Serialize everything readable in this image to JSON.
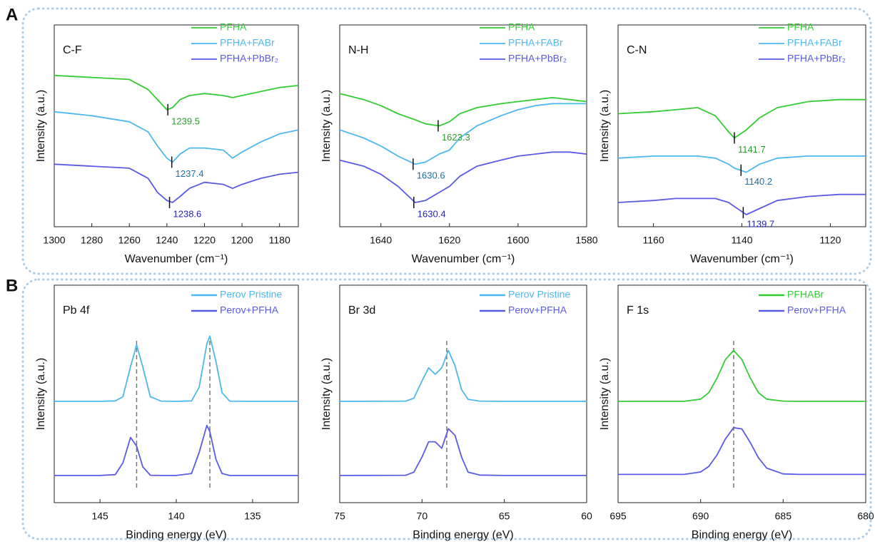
{
  "panels": [
    "A",
    "B"
  ],
  "chart_data": [
    {
      "type": "line",
      "title": "C-F",
      "xlabel": "Wavenumber (cm⁻¹)",
      "ylabel": "Intensity (a.u.)",
      "xlim": [
        1300,
        1170
      ],
      "xticks": [
        1300,
        1280,
        1260,
        1240,
        1220,
        1200,
        1180
      ],
      "ylim": [
        0,
        100
      ],
      "grid": false,
      "legend": "upper right",
      "x": [
        1300,
        1280,
        1260,
        1250,
        1245,
        1240,
        1237,
        1233,
        1228,
        1220,
        1210,
        1205,
        1200,
        1190,
        1180,
        1170
      ],
      "series": [
        {
          "name": "PFHA",
          "color": "#33cc33",
          "values": [
            75,
            74,
            73,
            68,
            63,
            58,
            59,
            63,
            65,
            66,
            65,
            64,
            65,
            67,
            69,
            70
          ]
        },
        {
          "name": "PFHA+FABr",
          "color": "#4db8f0",
          "values": [
            57,
            55,
            52,
            47,
            40,
            34,
            32,
            36,
            39,
            39,
            38,
            34,
            37,
            42,
            46,
            48
          ]
        },
        {
          "name": "PFHA+PbBr₂",
          "color": "#5a5ae6",
          "values": [
            31,
            30,
            29,
            24,
            17,
            13,
            12,
            15,
            19,
            22,
            21,
            19,
            21,
            24,
            26,
            27
          ]
        }
      ],
      "annotations": [
        {
          "x": 1239.5,
          "y": 58,
          "color": "#2a9d2a"
        },
        {
          "x": 1237.4,
          "y": 32,
          "color": "#1c6ea4"
        },
        {
          "x": 1238.6,
          "y": 12,
          "color": "#2626b0"
        }
      ]
    },
    {
      "type": "line",
      "title": "N-H",
      "xlabel": "Wavenumber (cm⁻¹)",
      "ylabel": "Intensity (a.u.)",
      "xlim": [
        1652,
        1580
      ],
      "xticks": [
        1640,
        1620,
        1600,
        1580
      ],
      "ylim": [
        0,
        100
      ],
      "grid": false,
      "legend": "upper right",
      "x": [
        1652,
        1645,
        1640,
        1635,
        1630,
        1627,
        1623,
        1620,
        1617,
        1612,
        1605,
        1600,
        1595,
        1590,
        1585,
        1580
      ],
      "series": [
        {
          "name": "PFHA",
          "color": "#33cc33",
          "values": [
            66,
            63,
            60,
            56,
            53,
            51,
            50,
            52,
            56,
            59,
            61,
            62,
            63,
            64,
            63,
            62
          ]
        },
        {
          "name": "PFHA+FABr",
          "color": "#4db8f0",
          "values": [
            48,
            44,
            40,
            35,
            31,
            32,
            36,
            38,
            44,
            50,
            55,
            58,
            60,
            61,
            61,
            61
          ]
        },
        {
          "name": "PFHA+PbBr₂",
          "color": "#5a5ae6",
          "values": [
            33,
            30,
            26,
            20,
            12,
            13,
            17,
            20,
            25,
            30,
            33,
            35,
            36,
            37,
            37,
            36
          ]
        }
      ],
      "annotations": [
        {
          "x": 1623.3,
          "y": 50,
          "color": "#2a9d2a"
        },
        {
          "x": 1630.6,
          "y": 31,
          "color": "#1c6ea4"
        },
        {
          "x": 1630.4,
          "y": 12,
          "color": "#2626b0"
        }
      ]
    },
    {
      "type": "line",
      "title": "C-N",
      "xlabel": "Wavenumber (cm⁻¹)",
      "ylabel": "Intensity (a.u.)",
      "xlim": [
        1168,
        1112
      ],
      "xticks": [
        1160,
        1140,
        1120
      ],
      "ylim": [
        0,
        100
      ],
      "grid": false,
      "legend": "upper right",
      "x": [
        1168,
        1160,
        1155,
        1150,
        1146,
        1143,
        1141.7,
        1139,
        1136,
        1132,
        1125,
        1118,
        1112
      ],
      "series": [
        {
          "name": "PFHA",
          "color": "#33cc33",
          "values": [
            56,
            57,
            58,
            59,
            55,
            47,
            44,
            48,
            54,
            59,
            62,
            63,
            63
          ]
        },
        {
          "name": "PFHA+FABr",
          "color": "#4db8f0",
          "values": [
            34,
            35,
            35,
            35,
            34,
            31,
            29,
            27,
            31,
            34,
            35,
            35,
            35
          ]
        },
        {
          "name": "PFHA+PbBr₂",
          "color": "#5a5ae6",
          "values": [
            12,
            13,
            14,
            14,
            14,
            12,
            10,
            6,
            9,
            13,
            15,
            16,
            16
          ]
        }
      ],
      "annotations": [
        {
          "x": 1141.7,
          "y": 44,
          "color": "#2a9d2a"
        },
        {
          "x": 1140.2,
          "y": 28,
          "color": "#1c6ea4"
        },
        {
          "x": 1139.7,
          "y": 7,
          "color": "#2626b0"
        }
      ]
    },
    {
      "type": "line",
      "title": "Pb 4f",
      "xlabel": "Binding energy (eV)",
      "ylabel": "Intensity (a.u.)",
      "xlim": [
        148,
        132
      ],
      "xticks": [
        145,
        140,
        135
      ],
      "ylim": [
        0,
        100
      ],
      "grid": false,
      "legend": "upper right",
      "x": [
        148,
        145,
        144,
        143.5,
        143,
        142.6,
        142.2,
        141.7,
        141,
        140,
        139,
        138.5,
        138,
        137.8,
        137.4,
        137,
        136.5,
        135,
        132
      ],
      "series": [
        {
          "name": "Perov Pristine",
          "color": "#4db8f0",
          "values": [
            46.6,
            46.6,
            46.8,
            48.7,
            62.5,
            72.6,
            62.5,
            48.7,
            46.7,
            46.6,
            46.8,
            53.1,
            73,
            76.6,
            64.9,
            50.6,
            46.7,
            46.6,
            46.6
          ]
        },
        {
          "name": "Perov+PFHA",
          "color": "#5a5ae6",
          "values": [
            12.5,
            12.5,
            12.9,
            18.3,
            30,
            26,
            16.5,
            12.6,
            12.5,
            12.5,
            13.4,
            23.1,
            35.5,
            32.7,
            19.9,
            13.4,
            12.5,
            12.5,
            12.5
          ]
        }
      ],
      "vlines": [
        142.6,
        137.8
      ]
    },
    {
      "type": "line",
      "title": "Br 3d",
      "xlabel": "Binding energy (eV)",
      "ylabel": "Intensity (a.u.)",
      "xlim": [
        75,
        60
      ],
      "xticks": [
        75,
        70,
        65,
        60
      ],
      "ylim": [
        0,
        100
      ],
      "grid": false,
      "legend": "upper right",
      "x": [
        75,
        71,
        70.5,
        70,
        69.6,
        69.2,
        68.8,
        68.4,
        68,
        67.6,
        67.2,
        66.5,
        65,
        60
      ],
      "series": [
        {
          "name": "Perov Pristine",
          "color": "#4db8f0",
          "values": [
            46.6,
            46.7,
            48,
            56,
            62,
            59,
            62,
            70,
            63,
            52,
            47.5,
            46.7,
            46.6,
            46.6
          ]
        },
        {
          "name": "Perov+PFHA",
          "color": "#5a5ae6",
          "values": [
            12.5,
            12.6,
            14,
            21,
            28,
            28,
            25,
            34,
            31,
            21,
            14,
            12.7,
            12.5,
            12.5
          ]
        }
      ],
      "vlines": [
        68.5
      ]
    },
    {
      "type": "line",
      "title": "F 1s",
      "xlabel": "Binding energy (eV)",
      "ylabel": "Intensity (a.u.)",
      "xlim": [
        695,
        680
      ],
      "xticks": [
        695,
        690,
        685,
        680
      ],
      "ylim": [
        0,
        100
      ],
      "grid": false,
      "legend": "upper right",
      "x": [
        695,
        691,
        690,
        689.5,
        689,
        688.5,
        688,
        687.5,
        687,
        686.5,
        686,
        685,
        684,
        680
      ],
      "series": [
        {
          "name": "PFHABr",
          "color": "#33cc33",
          "values": [
            46.6,
            46.6,
            47.6,
            50.6,
            57.4,
            65.8,
            70,
            65.8,
            57.4,
            50.6,
            47.6,
            46.7,
            46.6,
            46.6
          ]
        },
        {
          "name": "Perov+PFHA",
          "color": "#5a5ae6",
          "values": [
            13,
            13,
            14.1,
            16.7,
            22,
            29.3,
            34.5,
            33.9,
            27.7,
            20.7,
            15.9,
            13.2,
            13,
            13
          ]
        }
      ],
      "vlines": [
        688
      ]
    }
  ]
}
